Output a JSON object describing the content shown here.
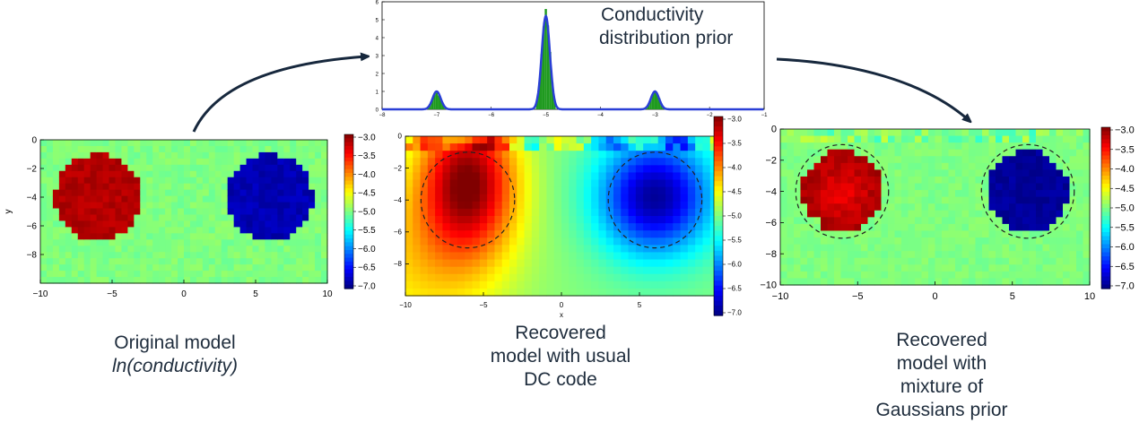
{
  "heatmaps": [
    {
      "id": "original",
      "xlim": [
        -10,
        10
      ],
      "ylim": [
        -10,
        0
      ],
      "xticks": [
        "−10",
        "−5",
        "0",
        "5",
        "10"
      ],
      "yticks": [
        "0",
        "−2",
        "−4",
        "−6",
        "−8"
      ],
      "ylabel": "y",
      "xlabel": "",
      "colorbar_ticks": [
        "−3.0",
        "−3.5",
        "−4.0",
        "−4.5",
        "−5.0",
        "−5.5",
        "−6.0",
        "−6.5",
        "−7.0"
      ],
      "dashed_circles": false
    },
    {
      "id": "recovered-dc",
      "xlim": [
        -10,
        10
      ],
      "ylim": [
        -10,
        0
      ],
      "xticks": [
        "−10",
        "−5",
        "0",
        "5",
        "10"
      ],
      "yticks": [
        "0",
        "−2",
        "−4",
        "−6",
        "−8"
      ],
      "ylabel": "",
      "xlabel": "x",
      "colorbar_ticks": [
        "−3.0",
        "−3.5",
        "−4.0",
        "−4.5",
        "−5.0",
        "−5.5",
        "−6.0",
        "−6.5",
        "−7.0"
      ],
      "dashed_circles": true
    },
    {
      "id": "recovered-mog",
      "xlim": [
        -10,
        10
      ],
      "ylim": [
        -10,
        0
      ],
      "xticks": [
        "−10",
        "−5",
        "0",
        "5",
        "10"
      ],
      "yticks": [
        "0",
        "−2",
        "−4",
        "−6",
        "−8",
        "−10"
      ],
      "ylabel": "",
      "xlabel": "",
      "colorbar_ticks": [
        "−3.0",
        "−3.5",
        "−4.0",
        "−4.5",
        "−5.0",
        "−5.5",
        "−6.0",
        "−6.5",
        "−7.0"
      ],
      "dashed_circles": true
    }
  ],
  "prior": {
    "xticks": [
      "−8",
      "−7",
      "−6",
      "−5",
      "−4",
      "−3",
      "−2",
      "−1"
    ],
    "yticks": [
      "0",
      "1",
      "2",
      "3",
      "4",
      "5",
      "6"
    ],
    "peaks": [
      {
        "mean": -7,
        "height": 1.0
      },
      {
        "mean": -5,
        "height": 5.2
      },
      {
        "mean": -3,
        "height": 1.0
      }
    ]
  },
  "labels": {
    "prior_title_1": "Conductivity",
    "prior_title_2": "distribution prior",
    "cap_original_1": "Original model",
    "cap_original_2": "ln(conductivity)",
    "cap_dc_1": "Recovered",
    "cap_dc_2": "model with usual",
    "cap_dc_3": "DC code",
    "cap_mog_1": "Recovered",
    "cap_mog_2": "model with",
    "cap_mog_3": "mixture of",
    "cap_mog_4": "Gaussians prior"
  },
  "colors": {
    "arrow": "#17283d",
    "caption": "#1f2d3d",
    "prior_line": "#2a3fd6",
    "prior_bar": "#1f9a1f"
  }
}
